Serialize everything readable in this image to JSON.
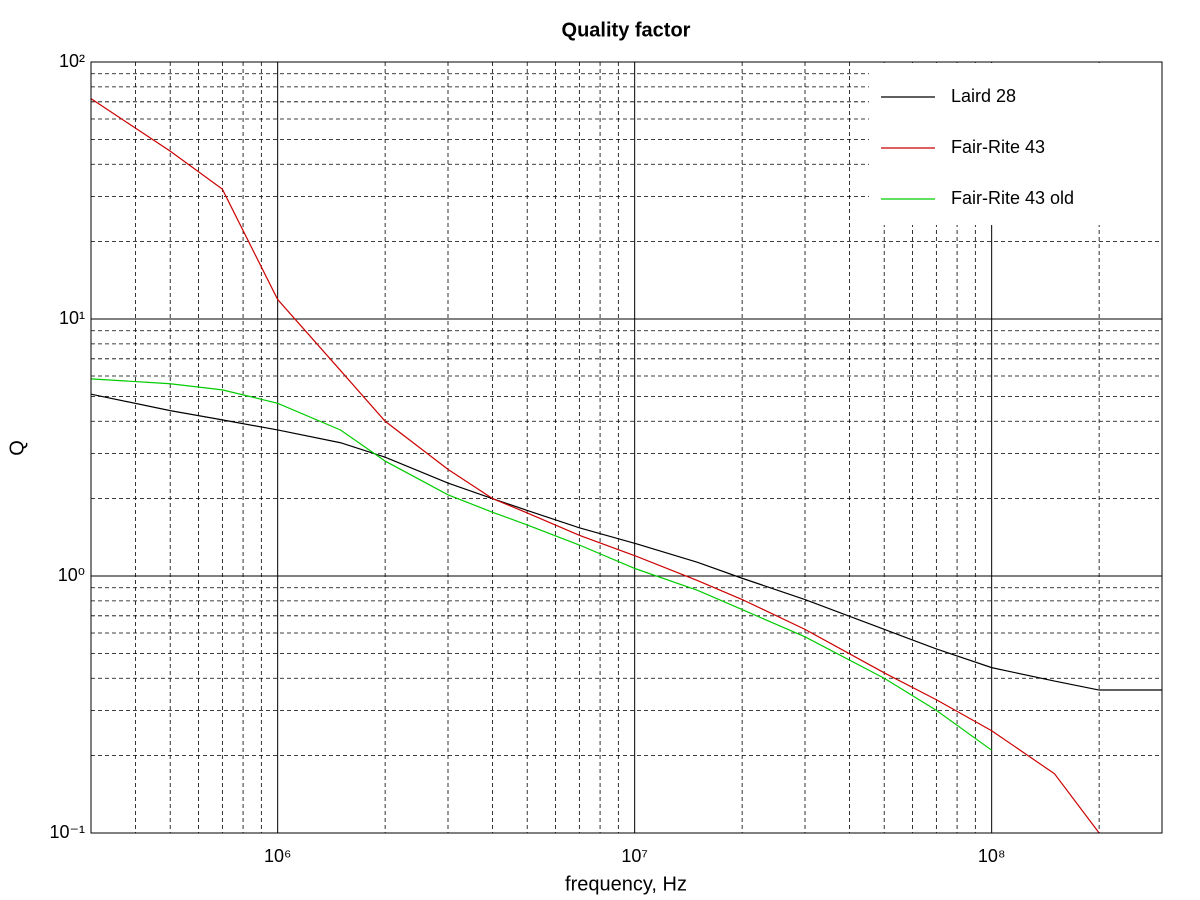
{
  "chart_data": {
    "type": "line",
    "title": "Quality factor",
    "xlabel": "frequency, Hz",
    "ylabel": "Q",
    "xscale": "log",
    "yscale": "log",
    "grid": true,
    "minor_grid": true,
    "legend_location": "upper right",
    "xlim": [
      300000,
      300000000
    ],
    "ylim": [
      0.1,
      100
    ],
    "xticks": [
      {
        "value": 1000000,
        "label": "10⁶"
      },
      {
        "value": 10000000,
        "label": "10⁷"
      },
      {
        "value": 100000000,
        "label": "10⁸"
      }
    ],
    "yticks": [
      {
        "value": 0.1,
        "label": "10⁻¹"
      },
      {
        "value": 1,
        "label": "10⁰"
      },
      {
        "value": 10,
        "label": "10¹"
      },
      {
        "value": 100,
        "label": "10²"
      }
    ],
    "xminorticks": [
      400000,
      500000,
      600000,
      700000,
      800000,
      900000,
      2000000,
      3000000,
      4000000,
      5000000,
      6000000,
      7000000,
      8000000,
      9000000,
      20000000,
      30000000,
      40000000,
      50000000,
      60000000,
      70000000,
      80000000,
      90000000,
      200000000
    ],
    "yminorticks": [
      0.2,
      0.3,
      0.4,
      0.5,
      0.6,
      0.7,
      0.8,
      0.9,
      2,
      3,
      4,
      5,
      6,
      7,
      8,
      9,
      20,
      30,
      40,
      50,
      60,
      70,
      80,
      90
    ],
    "x": [
      300000,
      500000,
      700000,
      1000000,
      1500000,
      2000000,
      3000000,
      4000000,
      5000000,
      7000000,
      10000000,
      15000000,
      20000000,
      30000000,
      50000000,
      70000000,
      100000000,
      150000000,
      200000000,
      300000000
    ],
    "series": [
      {
        "name": "Laird 28",
        "color": "#000000",
        "values": [
          5.1,
          4.4,
          4.05,
          3.7,
          3.3,
          2.9,
          2.3,
          2.0,
          1.8,
          1.54,
          1.34,
          1.13,
          0.98,
          0.81,
          0.62,
          0.52,
          0.44,
          0.39,
          0.36,
          0.36
        ]
      },
      {
        "name": "Fair-Rite 43",
        "color": "#cc0000",
        "values": [
          72,
          45,
          32,
          11.9,
          6.3,
          4.0,
          2.6,
          2.0,
          1.76,
          1.44,
          1.2,
          0.96,
          0.81,
          0.62,
          0.42,
          0.33,
          0.25,
          0.17,
          0.1,
          null
        ]
      },
      {
        "name": "Fair-Rite 43 old",
        "color": "#00cc00",
        "values": [
          5.85,
          5.6,
          5.3,
          4.7,
          3.7,
          2.8,
          2.07,
          1.77,
          1.58,
          1.32,
          1.07,
          0.88,
          0.74,
          0.58,
          0.4,
          0.3,
          0.21,
          null,
          null,
          null
        ]
      }
    ]
  }
}
